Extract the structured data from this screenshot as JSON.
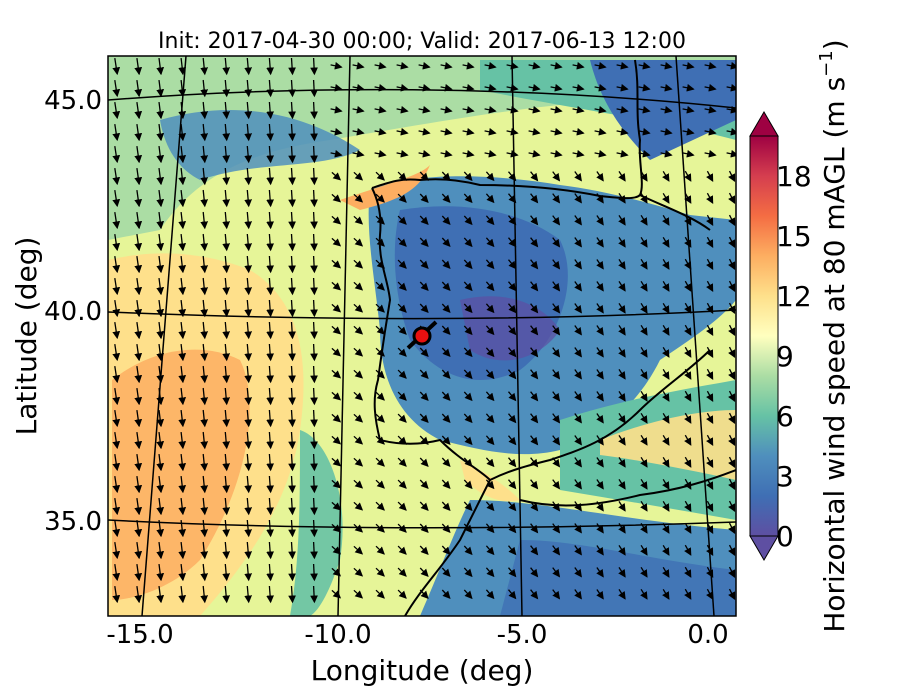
{
  "chart_data": {
    "type": "heatmap",
    "title": "Init: 2017-04-30 00:00; Valid: 2017-06-13 12:00",
    "xlabel": "Longitude (deg)",
    "ylabel": "Latitude (deg)",
    "x_ticks": [
      "-15.0",
      "-10.0",
      "-5.0",
      "0.0"
    ],
    "y_ticks": [
      "35.0",
      "40.0",
      "45.0"
    ],
    "xlim": [
      -15.8,
      0.3
    ],
    "ylim": [
      32.6,
      46.1
    ],
    "colorbar": {
      "label": "Horizontal wind speed at 80 mAGL (m s",
      "label_unit_sup": "−1",
      "label_close": ")",
      "ticks": [
        "0",
        "3",
        "6",
        "9",
        "12",
        "15",
        "18"
      ],
      "range": [
        0,
        20
      ],
      "extend": "both",
      "colormap": "Spectral_r"
    },
    "marker": {
      "lon": -7.7,
      "lat": 39.3,
      "color": "#e81010"
    },
    "levels_colors": [
      "#5e4fa2",
      "#3f6fb4",
      "#4f8fbd",
      "#66c2a5",
      "#abdda4",
      "#e6f598",
      "#ffffbf",
      "#fee08b",
      "#fdae61",
      "#f46d43",
      "#d53e4f",
      "#9e0142"
    ]
  }
}
